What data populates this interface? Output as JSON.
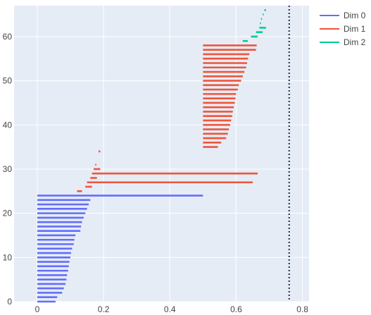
{
  "chart_data": {
    "type": "barcode",
    "title": "",
    "xlabel": "",
    "ylabel": "",
    "xlim": [
      -0.07,
      0.82
    ],
    "ylim": [
      0,
      67
    ],
    "x_ticks": [
      0,
      0.2,
      0.4,
      0.6,
      0.8
    ],
    "x_tick_labels": [
      "0",
      "0.2",
      "0.4",
      "0.6",
      "0.8"
    ],
    "y_ticks": [
      0,
      10,
      20,
      30,
      40,
      50,
      60
    ],
    "y_tick_labels": [
      "0",
      "10",
      "20",
      "30",
      "40",
      "50",
      "60"
    ],
    "grid": true,
    "legend_position": "top-right",
    "threshold_line": {
      "x": 0.76,
      "style": "dotted",
      "color": "#1f2a44"
    },
    "series": [
      {
        "name": "Dim 0",
        "color": "#636efa",
        "intervals": [
          {
            "y": 0,
            "birth": 0,
            "death": 0.055
          },
          {
            "y": 1,
            "birth": 0,
            "death": 0.06
          },
          {
            "y": 2,
            "birth": 0,
            "death": 0.075
          },
          {
            "y": 3,
            "birth": 0,
            "death": 0.08
          },
          {
            "y": 4,
            "birth": 0,
            "death": 0.085
          },
          {
            "y": 5,
            "birth": 0,
            "death": 0.088
          },
          {
            "y": 6,
            "birth": 0,
            "death": 0.09
          },
          {
            "y": 7,
            "birth": 0,
            "death": 0.093
          },
          {
            "y": 8,
            "birth": 0,
            "death": 0.095
          },
          {
            "y": 9,
            "birth": 0,
            "death": 0.097
          },
          {
            "y": 10,
            "birth": 0,
            "death": 0.1
          },
          {
            "y": 11,
            "birth": 0,
            "death": 0.102
          },
          {
            "y": 12,
            "birth": 0,
            "death": 0.105
          },
          {
            "y": 13,
            "birth": 0,
            "death": 0.11
          },
          {
            "y": 14,
            "birth": 0,
            "death": 0.112
          },
          {
            "y": 15,
            "birth": 0,
            "death": 0.115
          },
          {
            "y": 16,
            "birth": 0,
            "death": 0.13
          },
          {
            "y": 17,
            "birth": 0,
            "death": 0.132
          },
          {
            "y": 18,
            "birth": 0,
            "death": 0.135
          },
          {
            "y": 19,
            "birth": 0,
            "death": 0.14
          },
          {
            "y": 20,
            "birth": 0,
            "death": 0.145
          },
          {
            "y": 21,
            "birth": 0,
            "death": 0.15
          },
          {
            "y": 22,
            "birth": 0,
            "death": 0.155
          },
          {
            "y": 23,
            "birth": 0,
            "death": 0.16
          },
          {
            "y": 24,
            "birth": 0,
            "death": 0.5
          }
        ]
      },
      {
        "name": "Dim 1",
        "color": "#ef553b",
        "intervals": [
          {
            "y": 25,
            "birth": 0.12,
            "death": 0.135
          },
          {
            "y": 26,
            "birth": 0.145,
            "death": 0.165
          },
          {
            "y": 27,
            "birth": 0.15,
            "death": 0.65
          },
          {
            "y": 28,
            "birth": 0.16,
            "death": 0.18
          },
          {
            "y": 29,
            "birth": 0.165,
            "death": 0.665
          },
          {
            "y": 30,
            "birth": 0.17,
            "death": 0.19
          },
          {
            "y": 31,
            "birth": 0.175,
            "death": 0.178
          },
          {
            "y": 34,
            "birth": 0.185,
            "death": 0.19
          },
          {
            "y": 35,
            "birth": 0.5,
            "death": 0.545
          },
          {
            "y": 36,
            "birth": 0.5,
            "death": 0.555
          },
          {
            "y": 37,
            "birth": 0.5,
            "death": 0.57
          },
          {
            "y": 38,
            "birth": 0.5,
            "death": 0.575
          },
          {
            "y": 39,
            "birth": 0.5,
            "death": 0.578
          },
          {
            "y": 40,
            "birth": 0.5,
            "death": 0.582
          },
          {
            "y": 41,
            "birth": 0.5,
            "death": 0.585
          },
          {
            "y": 42,
            "birth": 0.5,
            "death": 0.588
          },
          {
            "y": 43,
            "birth": 0.5,
            "death": 0.59
          },
          {
            "y": 44,
            "birth": 0.5,
            "death": 0.593
          },
          {
            "y": 45,
            "birth": 0.5,
            "death": 0.596
          },
          {
            "y": 46,
            "birth": 0.5,
            "death": 0.598
          },
          {
            "y": 47,
            "birth": 0.5,
            "death": 0.6
          },
          {
            "y": 48,
            "birth": 0.5,
            "death": 0.605
          },
          {
            "y": 49,
            "birth": 0.5,
            "death": 0.608
          },
          {
            "y": 50,
            "birth": 0.5,
            "death": 0.615
          },
          {
            "y": 51,
            "birth": 0.5,
            "death": 0.62
          },
          {
            "y": 52,
            "birth": 0.5,
            "death": 0.625
          },
          {
            "y": 53,
            "birth": 0.5,
            "death": 0.63
          },
          {
            "y": 54,
            "birth": 0.5,
            "death": 0.633
          },
          {
            "y": 55,
            "birth": 0.5,
            "death": 0.636
          },
          {
            "y": 56,
            "birth": 0.5,
            "death": 0.64
          },
          {
            "y": 57,
            "birth": 0.5,
            "death": 0.66
          },
          {
            "y": 58,
            "birth": 0.5,
            "death": 0.662
          }
        ]
      },
      {
        "name": "Dim 2",
        "color": "#00cc96",
        "intervals": [
          {
            "y": 59,
            "birth": 0.62,
            "death": 0.635
          },
          {
            "y": 60,
            "birth": 0.645,
            "death": 0.665
          },
          {
            "y": 61,
            "birth": 0.66,
            "death": 0.68
          },
          {
            "y": 62,
            "birth": 0.67,
            "death": 0.69
          },
          {
            "y": 63,
            "birth": 0.672,
            "death": 0.675
          },
          {
            "y": 64,
            "birth": 0.675,
            "death": 0.678
          },
          {
            "y": 65,
            "birth": 0.68,
            "death": 0.683
          },
          {
            "y": 66,
            "birth": 0.685,
            "death": 0.69
          }
        ]
      }
    ]
  }
}
